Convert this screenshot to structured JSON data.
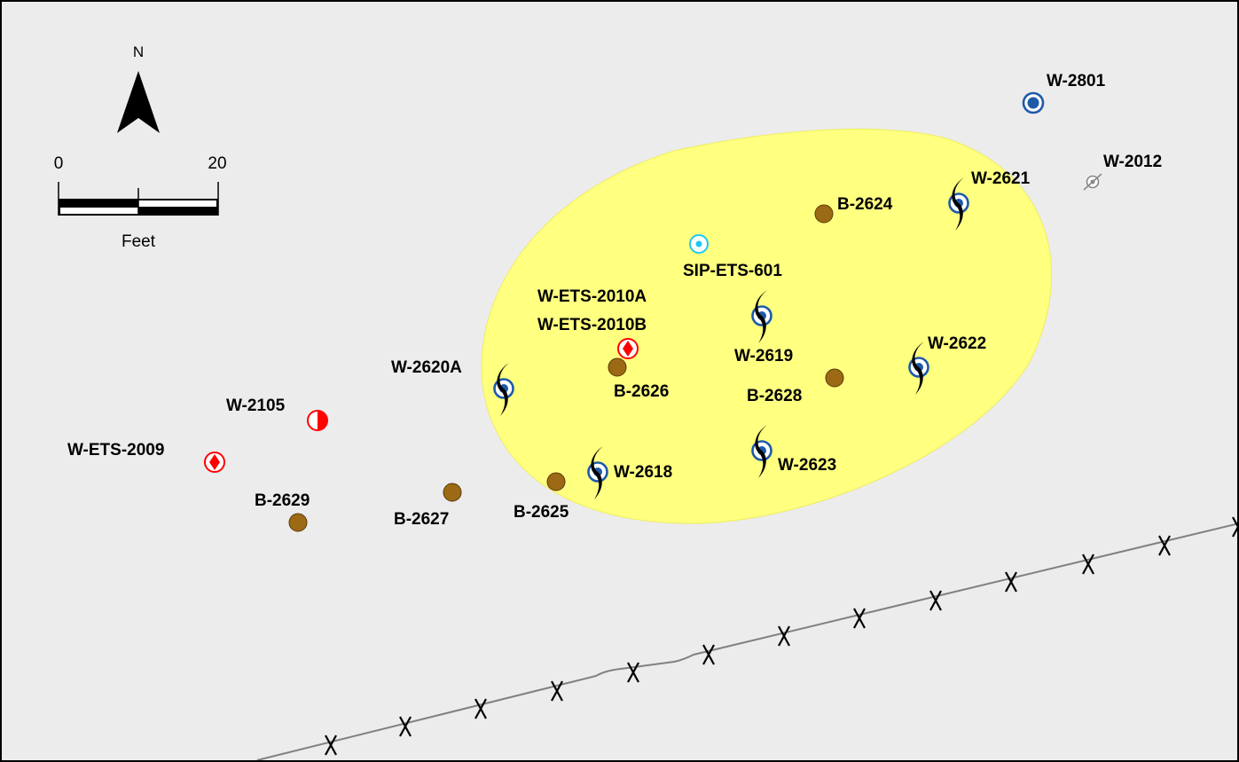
{
  "north_arrow": {
    "label": "N"
  },
  "scale_bar": {
    "start": "0",
    "end": "20",
    "units": "Feet"
  },
  "colors": {
    "background": "#ececec",
    "plume_fill": "#ffff80",
    "boring": "#9c6a14",
    "monitoring_ring": "#1e5aa8",
    "extraction_well": "#000000",
    "red_symbol": "#ff0000",
    "sip_symbol": "#1ec8f0",
    "fence_line": "#808080"
  },
  "features": {
    "w2801": {
      "label": "W-2801",
      "symbol": "solid-blue-well-icon"
    },
    "w2012": {
      "label": "W-2012",
      "symbol": "abandoned-well-icon"
    },
    "w2621": {
      "label": "W-2621",
      "symbol": "extraction-well-icon"
    },
    "b2624": {
      "label": "B-2624",
      "symbol": "boring-icon"
    },
    "sip_ets_601": {
      "label": "SIP-ETS-601",
      "symbol": "soil-vapor-point-icon"
    },
    "w_ets_2010a": {
      "label": "W-ETS-2010A",
      "symbol": "red-diamond-well-icon"
    },
    "w_ets_2010b": {
      "label": "W-ETS-2010B",
      "symbol": "red-diamond-well-icon"
    },
    "w2619": {
      "label": "W-2619",
      "symbol": "extraction-well-icon"
    },
    "w2622": {
      "label": "W-2622",
      "symbol": "extraction-well-icon"
    },
    "w2620a": {
      "label": "W-2620A",
      "symbol": "extraction-well-icon"
    },
    "b2626": {
      "label": "B-2626",
      "symbol": "boring-icon"
    },
    "b2628": {
      "label": "B-2628",
      "symbol": "boring-icon"
    },
    "w2105": {
      "label": "W-2105",
      "symbol": "half-red-well-icon"
    },
    "w_ets_2009": {
      "label": "W-ETS-2009",
      "symbol": "red-diamond-well-icon"
    },
    "w2618": {
      "label": "W-2618",
      "symbol": "extraction-well-icon"
    },
    "w2623": {
      "label": "W-2623",
      "symbol": "extraction-well-icon"
    },
    "b2629": {
      "label": "B-2629",
      "symbol": "boring-icon"
    },
    "b2627": {
      "label": "B-2627",
      "symbol": "boring-icon"
    },
    "b2625": {
      "label": "B-2625",
      "symbol": "boring-icon"
    }
  }
}
